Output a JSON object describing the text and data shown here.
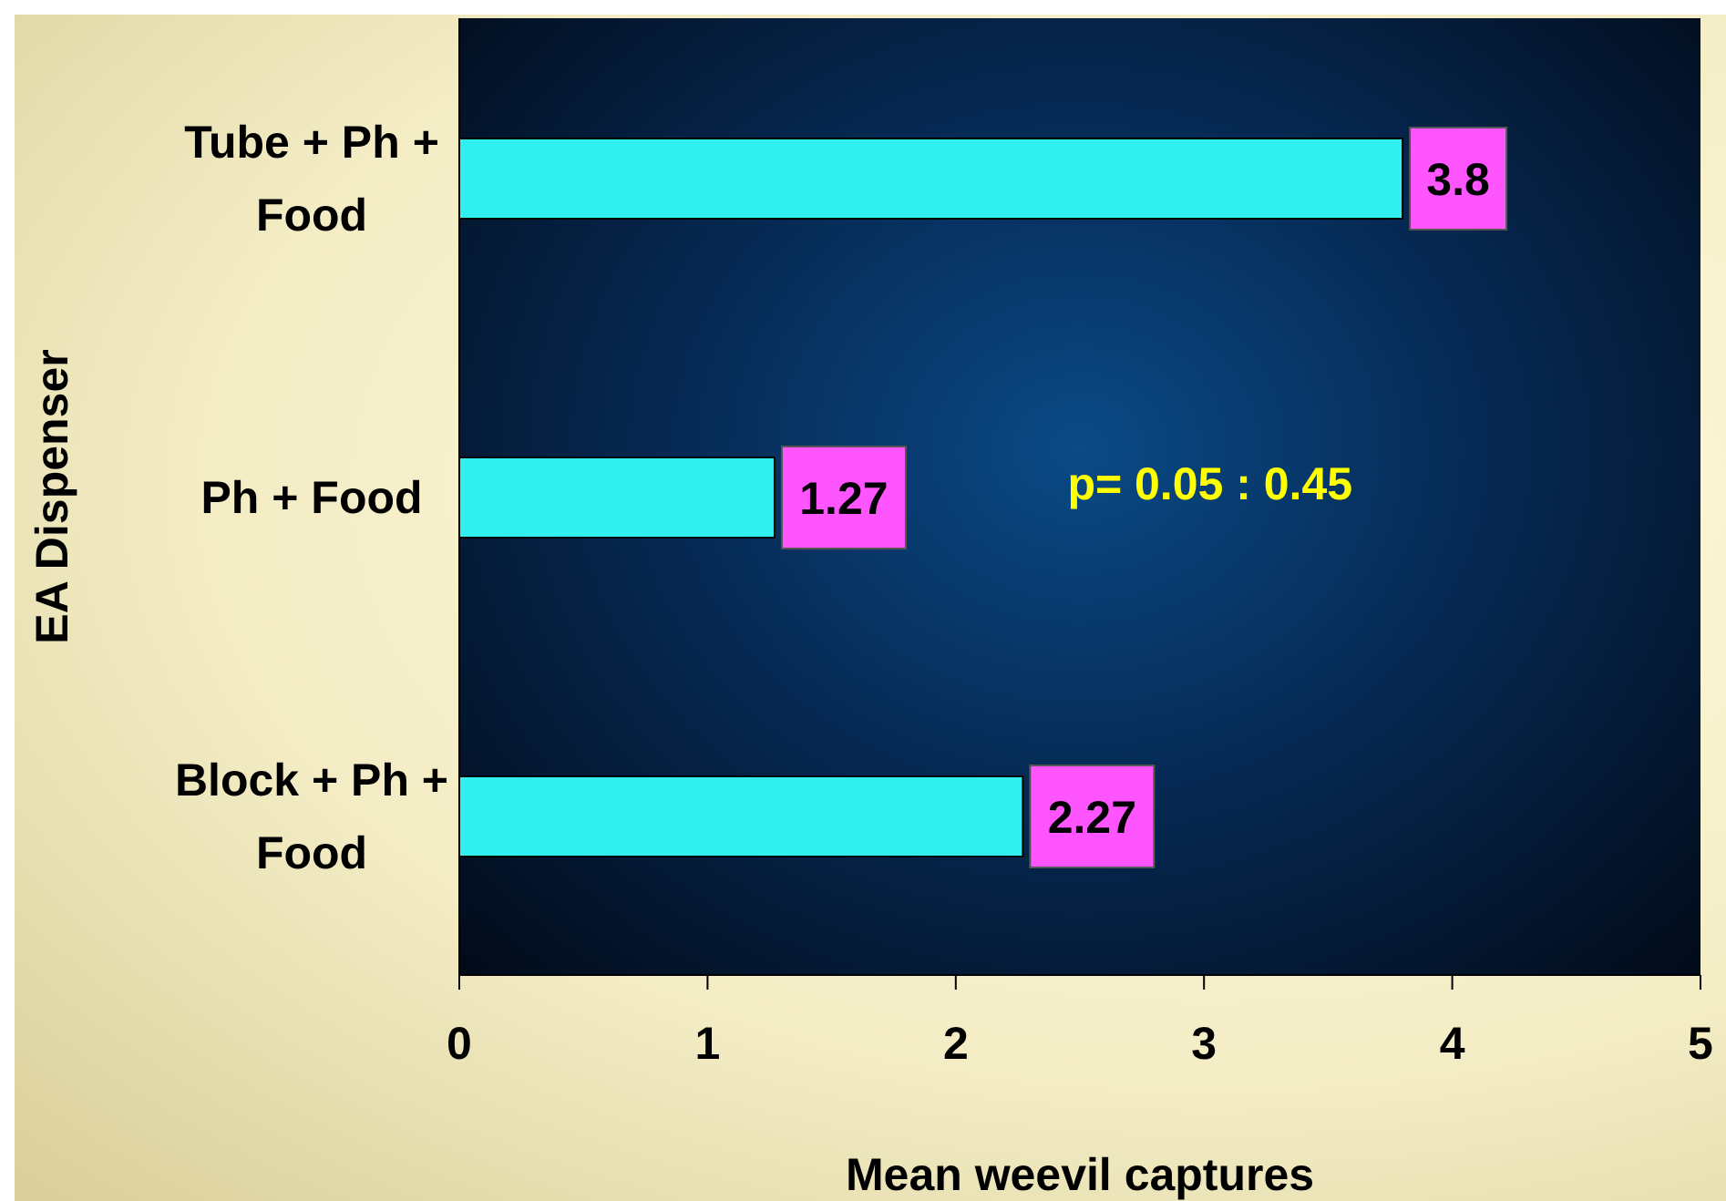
{
  "chart_data": {
    "type": "bar",
    "orientation": "horizontal",
    "categories": [
      "Tube + Ph + Food",
      "Ph + Food",
      "Block + Ph + Food"
    ],
    "values": [
      3.8,
      1.27,
      2.27
    ],
    "color": "#33f0f0",
    "data_labels": true,
    "xlim": [
      0,
      5
    ],
    "xticks": [
      0,
      1,
      2,
      3,
      4,
      5
    ],
    "xlabel": "Mean weevil captures",
    "ylabel": "EA Dispenser",
    "annotations": [
      "p= 0.05 : 0.45"
    ],
    "grid": false,
    "legend": false
  }
}
